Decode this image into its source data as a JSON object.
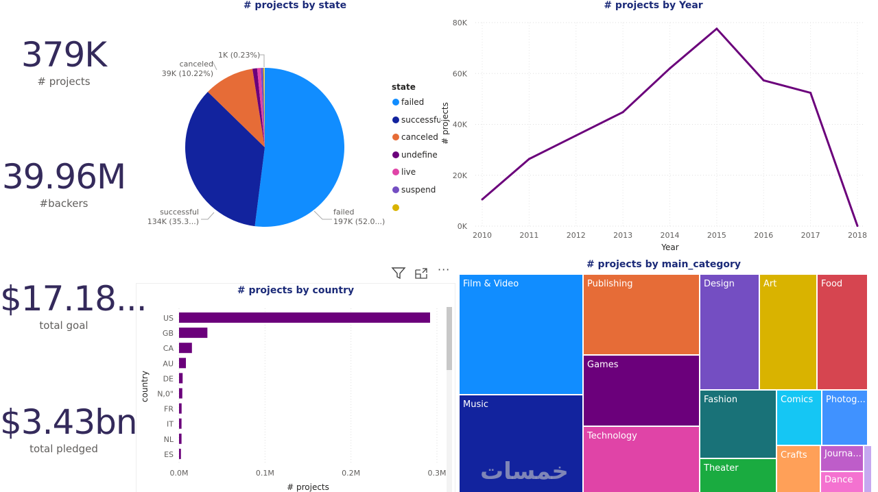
{
  "kpis": [
    {
      "value": "379K",
      "label": "# projects"
    },
    {
      "value": "39.96M",
      "label": "#backers"
    },
    {
      "value": "$17.18...",
      "label": "total goal"
    },
    {
      "value": "$3.43bn",
      "label": "total pledged"
    }
  ],
  "visual_header": {
    "filter_icon": "filter-icon",
    "focus_icon": "focus-mode-icon",
    "more_icon": "more-options-icon"
  },
  "watermark": "خمسات",
  "chart_data": [
    {
      "type": "pie",
      "title": "# projects by state",
      "legend_title": "state",
      "legend_position": "right",
      "slices": [
        {
          "name": "failed",
          "percent": 52.0,
          "label": "failed",
          "value_label": "197K (52.0...)",
          "color": "#118DFF",
          "legend": "failed"
        },
        {
          "name": "successful",
          "percent": 35.3,
          "label": "successful",
          "value_label": "134K (35.3...)",
          "color": "#12239E",
          "legend": "successfu"
        },
        {
          "name": "canceled",
          "percent": 10.22,
          "label": "canceled",
          "value_label": "39K (10.22%)",
          "color": "#E66C37",
          "legend": "canceled"
        },
        {
          "name": "undefined",
          "percent": 0.94,
          "color": "#6B007B",
          "legend": "undefine"
        },
        {
          "name": "live",
          "percent": 0.74,
          "color": "#E044A7",
          "legend": "live"
        },
        {
          "name": "suspended",
          "percent": 0.49,
          "color": "#744EC2",
          "legend": "suspend"
        },
        {
          "name": "",
          "percent": 0.23,
          "value_label": "1K (0.23%)",
          "color": "#D9B300",
          "legend": ""
        }
      ]
    },
    {
      "type": "line",
      "title": "# projects by Year",
      "xlabel": "Year",
      "ylabel": "# projects",
      "color": "#6B007B",
      "grid": true,
      "x": [
        2010,
        2011,
        2012,
        2013,
        2014,
        2015,
        2016,
        2017,
        2018
      ],
      "y": [
        10500,
        26400,
        35600,
        44800,
        62000,
        77600,
        57300,
        52400,
        100
      ],
      "ylim": [
        0,
        80000
      ],
      "yticks": [
        "0K",
        "20K",
        "40K",
        "60K",
        "80K"
      ],
      "xticks": [
        "2010",
        "2011",
        "2012",
        "2013",
        "2014",
        "2015",
        "2016",
        "2017",
        "2018"
      ]
    },
    {
      "type": "bar",
      "orientation": "horizontal",
      "title": "# projects by country",
      "xlabel": "# projects",
      "ylabel": "country",
      "color": "#6B007B",
      "grid": true,
      "categories": [
        "US",
        "GB",
        "CA",
        "AU",
        "DE",
        "N,0\"",
        "FR",
        "IT",
        "NL",
        "ES"
      ],
      "values": [
        292000,
        33000,
        15000,
        8000,
        4200,
        3800,
        3000,
        2900,
        2900,
        2200
      ],
      "xlim": [
        0,
        300000
      ],
      "xticks": [
        "0.0M",
        "0.1M",
        "0.2M",
        "0.3M"
      ]
    },
    {
      "type": "treemap",
      "title": "# projects by main_category",
      "items": [
        {
          "name": "Film & Video",
          "color": "#118DFF"
        },
        {
          "name": "Music",
          "color": "#12239E"
        },
        {
          "name": "Publishing",
          "color": "#E66C37"
        },
        {
          "name": "Games",
          "color": "#6B007B"
        },
        {
          "name": "Technology",
          "color": "#E044A7"
        },
        {
          "name": "Design",
          "color": "#744EC2"
        },
        {
          "name": "Art",
          "color": "#D9B300"
        },
        {
          "name": "Food",
          "color": "#D64550"
        },
        {
          "name": "Fashion",
          "color": "#197278"
        },
        {
          "name": "Theater",
          "color": "#1AAB40"
        },
        {
          "name": "Comics",
          "color": "#15C6F4"
        },
        {
          "name": "Photog...",
          "color": "#4092FF"
        },
        {
          "name": "Crafts",
          "color": "#FFA058"
        },
        {
          "name": "Journa...",
          "color": "#BE5DC9"
        },
        {
          "name": "Dance",
          "color": "#F472D0"
        },
        {
          "name": "",
          "color": "#C5A8F0"
        }
      ]
    }
  ]
}
